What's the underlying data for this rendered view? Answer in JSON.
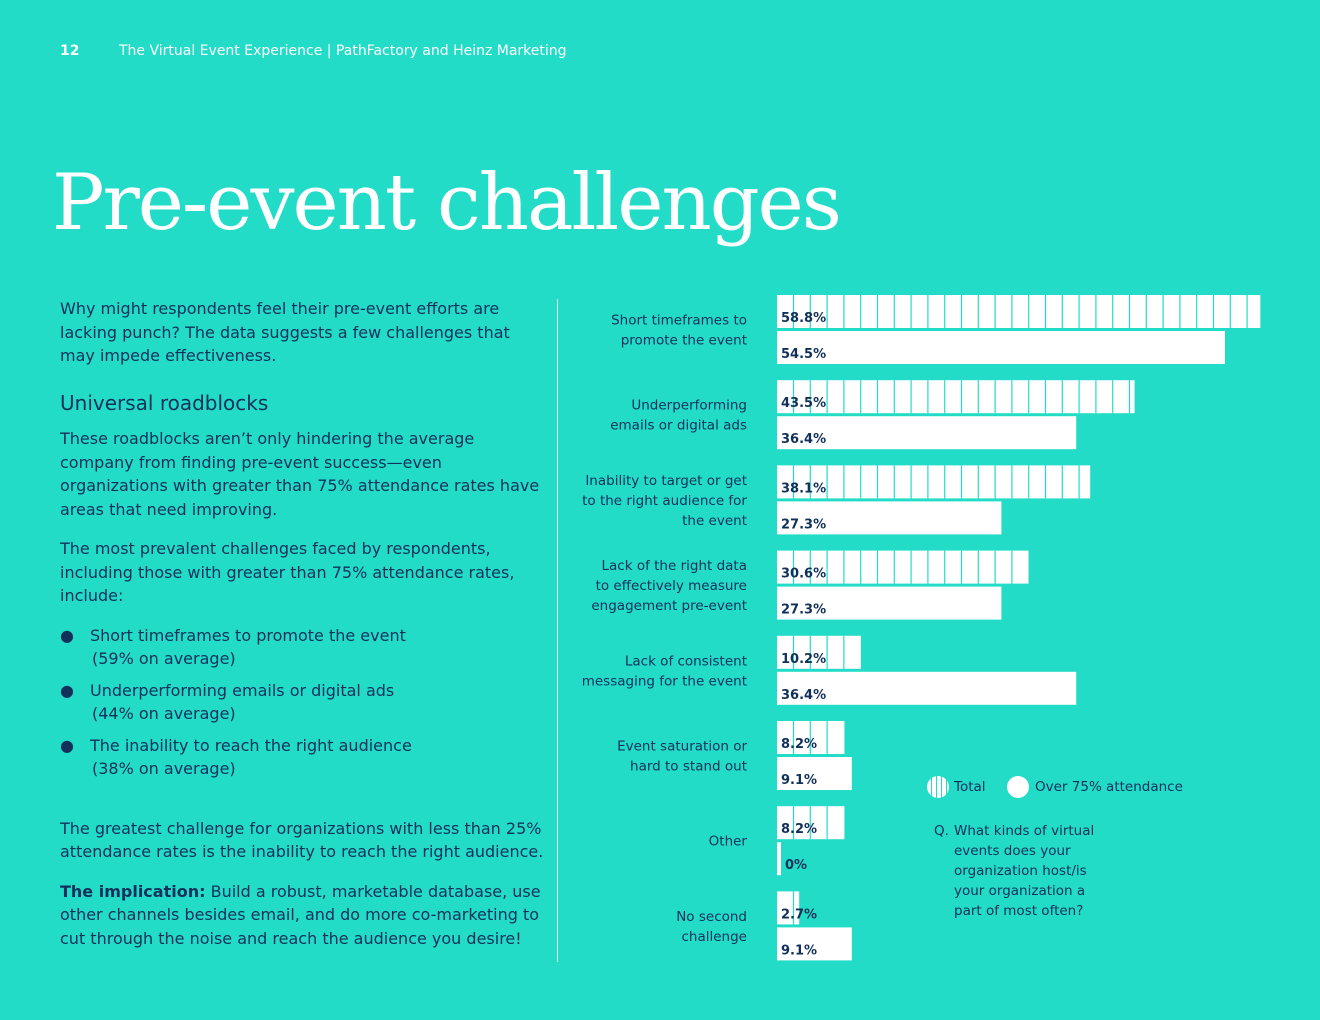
{
  "header": {
    "page_number": "12",
    "doc_title": "The Virtual Event Experience | PathFactory and Heinz Marketing"
  },
  "title": "Pre-event challenges",
  "left": {
    "intro": "Why might respondents feel their pre-event efforts are lacking punch? The data suggests a few challenges that may impede effectiveness.",
    "subheading": "Universal roadblocks",
    "p1": "These roadblocks aren’t only hindering the average company from finding pre-event success—even organizations with greater than 75% attendance rates have areas that need improving.",
    "p2": "The most prevalent challenges faced by respondents, including those with greater than 75% attendance rates, include:",
    "bullets": [
      {
        "text": "Short timeframes to promote the event",
        "note": "(59% on average)"
      },
      {
        "text": "Underperforming emails or digital ads",
        "note": "(44% on average)"
      },
      {
        "text": "The inability to reach the right audience",
        "note": "(38% on average)"
      }
    ],
    "p3": "The greatest challenge for organizations with less than 25% attendance rates is the inability to reach the right audience.",
    "implication_label": "The implication:",
    "implication_text": " Build a robust, marketable database, use other channels besides email, and do more co-marketing to cut through the noise and reach the audience you desire!"
  },
  "legend": {
    "total": "Total",
    "over75": "Over 75% attendance"
  },
  "question": {
    "prefix": "Q.",
    "text": "What kinds of virtual events does your organization host/is your organization a part of most often?"
  },
  "chart_data": {
    "type": "bar",
    "orientation": "horizontal",
    "categories": [
      [
        "Short timeframes to",
        "promote the event"
      ],
      [
        "Underperforming",
        "emails or digital ads"
      ],
      [
        "Inability to target or get",
        "to the right audience for",
        "the event"
      ],
      [
        "Lack of the right data",
        "to effectively measure",
        "engagement pre-event"
      ],
      [
        "Lack of consistent",
        "messaging for the event"
      ],
      [
        "Event saturation or",
        "hard to stand out"
      ],
      [
        "Other"
      ],
      [
        "No second",
        "challenge"
      ]
    ],
    "series": [
      {
        "name": "Total",
        "values": [
          58.8,
          43.5,
          38.1,
          30.6,
          10.2,
          8.2,
          8.2,
          2.7
        ],
        "labels": [
          "58.8%",
          "43.5%",
          "38.1%",
          "30.6%",
          "10.2%",
          "8.2%",
          "8.2%",
          "2.7%"
        ],
        "style": "striped"
      },
      {
        "name": "Over 75% attendance",
        "values": [
          54.5,
          36.4,
          27.3,
          27.3,
          36.4,
          9.1,
          0,
          9.1
        ],
        "labels": [
          "54.5%",
          "36.4%",
          "27.3%",
          "27.3%",
          "36.4%",
          "9.1%",
          "0%",
          "9.1%"
        ],
        "style": "solid"
      }
    ],
    "legend_position": "bottom-right",
    "grid": false,
    "colors": {
      "background": "#22dcc8",
      "bar": "#ffffff",
      "text": "#12315a"
    }
  }
}
